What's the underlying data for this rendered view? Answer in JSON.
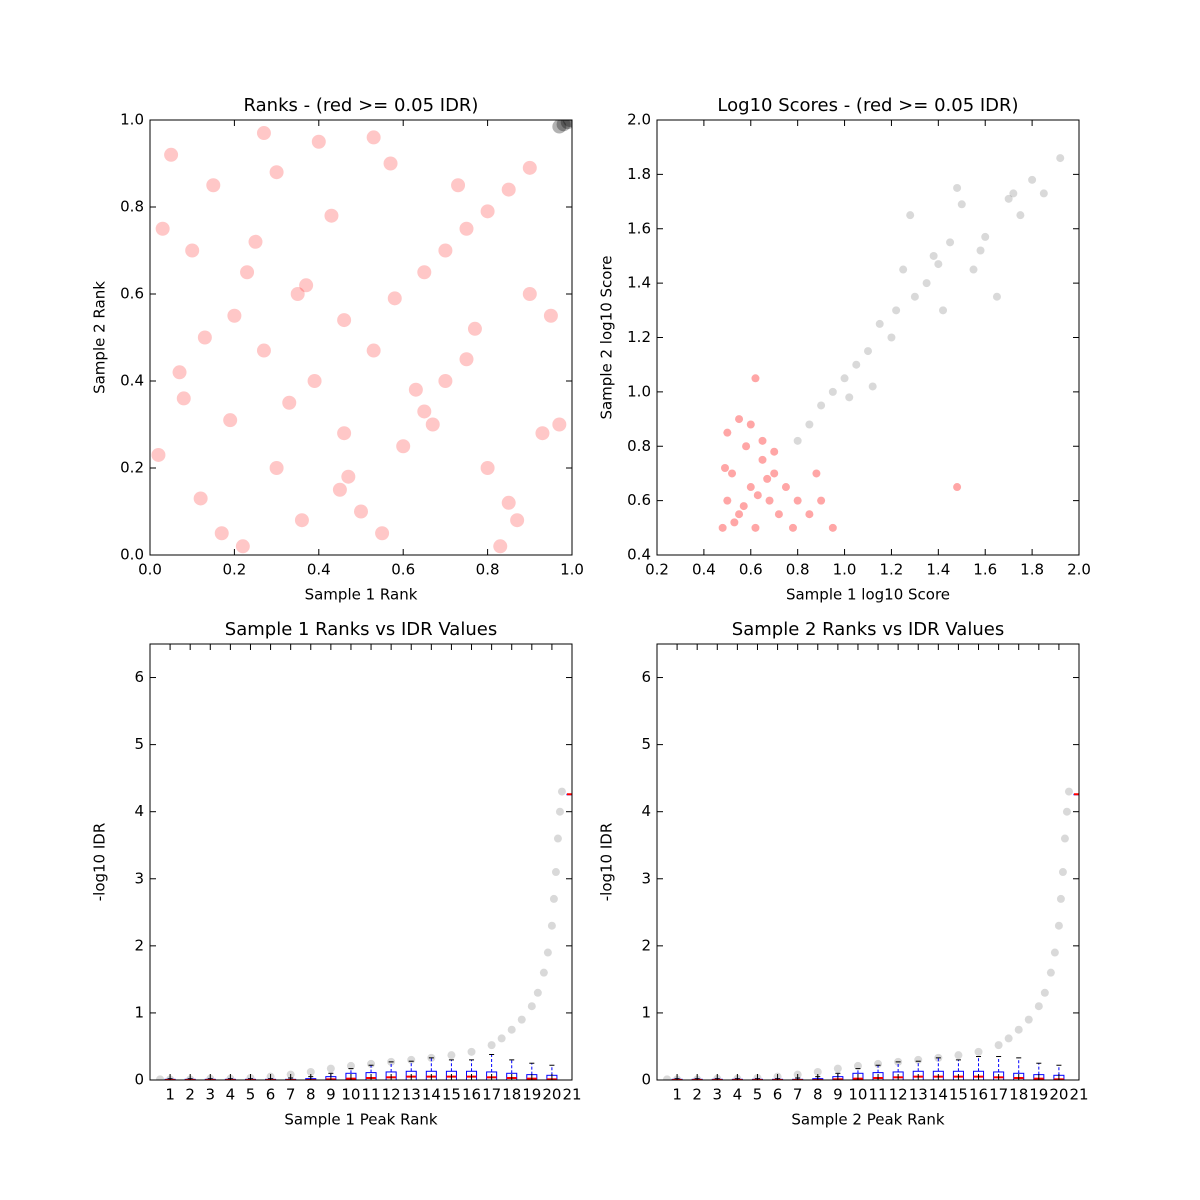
{
  "chart_data": [
    {
      "type": "scatter",
      "title": "Ranks - (red >= 0.05 IDR)",
      "x_label": "Sample 1 Rank",
      "y_label": "Sample 2 Rank",
      "xlim": [
        0,
        1
      ],
      "ylim": [
        0,
        1
      ],
      "xticks": [
        {
          "value": 0,
          "label": "0.0"
        },
        0.2,
        0.4,
        0.6,
        0.8,
        {
          "value": 1,
          "label": "1.0"
        }
      ],
      "yticks": [
        {
          "value": 0,
          "label": "0.0"
        },
        0.2,
        0.4,
        0.6,
        0.8,
        {
          "value": 1,
          "label": "1.0"
        }
      ],
      "series": [
        {
          "color": "rgba(255,0,0,0.22)",
          "x": [
            0.02,
            0.08,
            0.19,
            0.12,
            0.3,
            0.39,
            0.46,
            0.53,
            0.58,
            0.27,
            0.46,
            0.36,
            0.22,
            0.65,
            0.7,
            0.75,
            0.8,
            0.85,
            0.9,
            0.05,
            0.15,
            0.25,
            0.35,
            0.45,
            0.55,
            0.65,
            0.75,
            0.85,
            0.95,
            0.1,
            0.2,
            0.3,
            0.4,
            0.5,
            0.6,
            0.7,
            0.8,
            0.9,
            0.03,
            0.13,
            0.23,
            0.33,
            0.43,
            0.53,
            0.63,
            0.73,
            0.83,
            0.93,
            0.07,
            0.17,
            0.27,
            0.37,
            0.47,
            0.57,
            0.67,
            0.77,
            0.87,
            0.97
          ],
          "values": [
            0.23,
            0.36,
            0.31,
            0.13,
            0.2,
            0.4,
            0.54,
            0.47,
            0.59,
            0.47,
            0.28,
            0.08,
            0.02,
            0.65,
            0.7,
            0.75,
            0.79,
            0.84,
            0.89,
            0.92,
            0.85,
            0.72,
            0.6,
            0.15,
            0.05,
            0.33,
            0.45,
            0.12,
            0.55,
            0.7,
            0.55,
            0.88,
            0.95,
            0.1,
            0.25,
            0.4,
            0.2,
            0.6,
            0.75,
            0.5,
            0.65,
            0.35,
            0.78,
            0.96,
            0.38,
            0.85,
            0.02,
            0.28,
            0.42,
            0.05,
            0.97,
            0.62,
            0.18,
            0.9,
            0.3,
            0.52,
            0.08,
            0.3
          ]
        },
        {
          "color": "rgba(0,0,0,0.3)",
          "x": [
            0.97,
            0.98,
            0.99,
            0.995
          ],
          "values": [
            0.985,
            0.99,
            0.995,
            1.0
          ]
        }
      ]
    },
    {
      "type": "scatter",
      "title": "Log10 Scores - (red >= 0.05 IDR)",
      "x_label": "Sample 1 log10 Score",
      "y_label": "Sample 2 log10 Score",
      "xlim": [
        0.2,
        2.0
      ],
      "ylim": [
        0.4,
        2.0
      ],
      "xticks": [
        0.2,
        0.4,
        0.6,
        0.8,
        {
          "value": 1,
          "label": "1.0"
        },
        1.2,
        1.4,
        1.6,
        1.8,
        {
          "value": 2,
          "label": "2.0"
        }
      ],
      "yticks": [
        0.4,
        0.6,
        0.8,
        {
          "value": 1,
          "label": "1.0"
        },
        1.2,
        1.4,
        1.6,
        1.8,
        {
          "value": 2,
          "label": "2.0"
        }
      ],
      "series": [
        {
          "color": "rgba(255,0,0,0.35)",
          "x": [
            0.48,
            0.5,
            0.52,
            0.55,
            0.58,
            0.6,
            0.62,
            0.65,
            0.68,
            0.7,
            0.72,
            0.75,
            0.78,
            0.8,
            0.5,
            0.55,
            0.6,
            0.65,
            0.7,
            0.53,
            0.57,
            0.63,
            0.67,
            0.49,
            0.85,
            0.9,
            0.95,
            0.88,
            1.48,
            0.62
          ],
          "values": [
            0.5,
            0.6,
            0.7,
            0.55,
            0.8,
            0.65,
            0.5,
            0.75,
            0.6,
            0.7,
            0.55,
            0.65,
            0.5,
            0.6,
            0.85,
            0.9,
            0.88,
            0.82,
            0.78,
            0.52,
            0.58,
            0.62,
            0.68,
            0.72,
            0.55,
            0.6,
            0.5,
            0.7,
            0.65,
            1.05
          ]
        },
        {
          "color": "rgba(0,0,0,0.15)",
          "x": [
            0.8,
            0.85,
            0.9,
            0.95,
            1.0,
            1.02,
            1.05,
            1.1,
            1.12,
            1.15,
            1.2,
            1.22,
            1.25,
            1.28,
            1.3,
            1.35,
            1.38,
            1.4,
            1.42,
            1.45,
            1.48,
            1.5,
            1.55,
            1.58,
            1.6,
            1.65,
            1.7,
            1.72,
            1.75,
            1.8,
            1.85,
            1.92
          ],
          "values": [
            0.82,
            0.88,
            0.95,
            1.0,
            1.05,
            0.98,
            1.1,
            1.15,
            1.02,
            1.25,
            1.2,
            1.3,
            1.45,
            1.65,
            1.35,
            1.4,
            1.5,
            1.47,
            1.3,
            1.55,
            1.75,
            1.69,
            1.45,
            1.52,
            1.57,
            1.35,
            1.71,
            1.73,
            1.65,
            1.78,
            1.73,
            1.86
          ]
        }
      ]
    },
    {
      "type": "box",
      "title": "Sample 1 Ranks vs IDR Values",
      "x_label": "Sample 1 Peak Rank",
      "y_label": "-log10 IDR",
      "xlim": [
        0,
        21
      ],
      "ylim": [
        0,
        6.5
      ],
      "xticks": [
        1,
        2,
        3,
        4,
        5,
        6,
        7,
        8,
        9,
        10,
        11,
        12,
        13,
        14,
        15,
        16,
        17,
        18,
        19,
        20,
        21
      ],
      "yticks": [
        0,
        1,
        2,
        3,
        4,
        5,
        6
      ],
      "series": [
        {
          "color": "rgba(0,0,0,0.15)",
          "x": [
            0.5,
            1,
            2,
            3,
            4,
            5,
            6,
            7,
            8,
            9,
            10,
            11,
            12,
            13,
            14,
            15,
            16,
            17,
            17.5,
            18,
            18.5,
            19,
            19.3,
            19.6,
            19.8,
            20,
            20.1,
            20.2,
            20.3,
            20.4,
            20.5
          ],
          "values": [
            0.01,
            0.01,
            0.01,
            0.02,
            0.02,
            0.03,
            0.05,
            0.08,
            0.12,
            0.17,
            0.21,
            0.24,
            0.27,
            0.3,
            0.33,
            0.37,
            0.42,
            0.52,
            0.62,
            0.75,
            0.9,
            1.1,
            1.3,
            1.6,
            1.9,
            2.3,
            2.7,
            3.1,
            3.6,
            4.0,
            4.3
          ]
        }
      ],
      "boxes": {
        "x": [
          1,
          2,
          3,
          4,
          5,
          6,
          7,
          8,
          9,
          10,
          11,
          12,
          13,
          14,
          15,
          16,
          17,
          18,
          19,
          20,
          21
        ],
        "q1": [
          0,
          0,
          0,
          0,
          0,
          0,
          0,
          0,
          0,
          0,
          0,
          0,
          0,
          0,
          0,
          0,
          0,
          0,
          0,
          0,
          4.26
        ],
        "median": [
          0,
          0,
          0,
          0,
          0,
          0,
          0,
          0,
          0.01,
          0.02,
          0.03,
          0.04,
          0.05,
          0.05,
          0.05,
          0.05,
          0.04,
          0.03,
          0.02,
          0.01,
          4.26
        ],
        "q3": [
          0.01,
          0.01,
          0.01,
          0.01,
          0.01,
          0.01,
          0.01,
          0.02,
          0.05,
          0.1,
          0.11,
          0.12,
          0.13,
          0.13,
          0.13,
          0.13,
          0.12,
          0.1,
          0.08,
          0.07,
          4.26
        ],
        "whisker_high": [
          0.02,
          0.02,
          0.02,
          0.02,
          0.02,
          0.02,
          0.03,
          0.05,
          0.1,
          0.17,
          0.22,
          0.27,
          0.28,
          0.33,
          0.3,
          0.3,
          0.38,
          0.3,
          0.25,
          0.22,
          4.26
        ]
      }
    },
    {
      "type": "box",
      "title": "Sample 2 Ranks vs IDR Values",
      "x_label": "Sample 2 Peak Rank",
      "y_label": "-log10 IDR",
      "xlim": [
        0,
        21
      ],
      "ylim": [
        0,
        6.5
      ],
      "xticks": [
        1,
        2,
        3,
        4,
        5,
        6,
        7,
        8,
        9,
        10,
        11,
        12,
        13,
        14,
        15,
        16,
        17,
        18,
        19,
        20,
        21
      ],
      "yticks": [
        0,
        1,
        2,
        3,
        4,
        5,
        6
      ],
      "series": [
        {
          "color": "rgba(0,0,0,0.15)",
          "x": [
            0.5,
            1,
            2,
            3,
            4,
            5,
            6,
            7,
            8,
            9,
            10,
            11,
            12,
            13,
            14,
            15,
            16,
            17,
            17.5,
            18,
            18.5,
            19,
            19.3,
            19.6,
            19.8,
            20,
            20.1,
            20.2,
            20.3,
            20.4,
            20.5
          ],
          "values": [
            0.01,
            0.01,
            0.01,
            0.02,
            0.02,
            0.03,
            0.05,
            0.08,
            0.12,
            0.17,
            0.21,
            0.24,
            0.27,
            0.3,
            0.33,
            0.37,
            0.42,
            0.52,
            0.62,
            0.75,
            0.9,
            1.1,
            1.3,
            1.6,
            1.9,
            2.3,
            2.7,
            3.1,
            3.6,
            4.0,
            4.3
          ]
        }
      ],
      "boxes": {
        "x": [
          1,
          2,
          3,
          4,
          5,
          6,
          7,
          8,
          9,
          10,
          11,
          12,
          13,
          14,
          15,
          16,
          17,
          18,
          19,
          20,
          21
        ],
        "q1": [
          0,
          0,
          0,
          0,
          0,
          0,
          0,
          0,
          0,
          0,
          0,
          0,
          0,
          0,
          0,
          0,
          0,
          0,
          0,
          0,
          4.26
        ],
        "median": [
          0,
          0,
          0,
          0,
          0,
          0,
          0,
          0,
          0.01,
          0.02,
          0.03,
          0.04,
          0.05,
          0.05,
          0.05,
          0.05,
          0.04,
          0.03,
          0.02,
          0.01,
          4.26
        ],
        "q3": [
          0.01,
          0.01,
          0.01,
          0.01,
          0.01,
          0.01,
          0.01,
          0.02,
          0.05,
          0.1,
          0.11,
          0.12,
          0.13,
          0.13,
          0.13,
          0.13,
          0.12,
          0.1,
          0.08,
          0.07,
          4.26
        ],
        "whisker_high": [
          0.02,
          0.02,
          0.02,
          0.02,
          0.02,
          0.02,
          0.03,
          0.05,
          0.1,
          0.17,
          0.22,
          0.27,
          0.28,
          0.33,
          0.3,
          0.35,
          0.35,
          0.33,
          0.25,
          0.22,
          4.26
        ]
      }
    }
  ]
}
